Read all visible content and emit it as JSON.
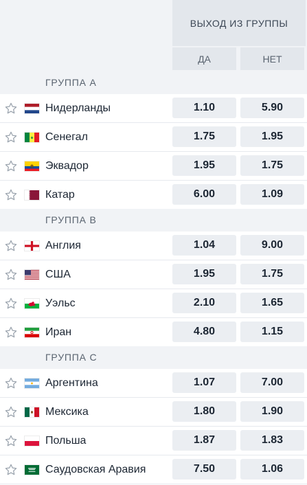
{
  "header": {
    "title": "ВЫХОД ИЗ ГРУППЫ",
    "col_yes": "ДА",
    "col_no": "НЕТ"
  },
  "groups": [
    {
      "name": "ГРУППА А",
      "teams": [
        {
          "name": "Нидерланды",
          "flag": "netherlands-flag-icon",
          "yes": "1.10",
          "no": "5.90"
        },
        {
          "name": "Сенегал",
          "flag": "senegal-flag-icon",
          "yes": "1.75",
          "no": "1.95"
        },
        {
          "name": "Эквадор",
          "flag": "ecuador-flag-icon",
          "yes": "1.95",
          "no": "1.75"
        },
        {
          "name": "Катар",
          "flag": "qatar-flag-icon",
          "yes": "6.00",
          "no": "1.09"
        }
      ]
    },
    {
      "name": "ГРУППА B",
      "teams": [
        {
          "name": "Англия",
          "flag": "england-flag-icon",
          "yes": "1.04",
          "no": "9.00"
        },
        {
          "name": "США",
          "flag": "usa-flag-icon",
          "yes": "1.95",
          "no": "1.75"
        },
        {
          "name": "Уэльс",
          "flag": "wales-flag-icon",
          "yes": "2.10",
          "no": "1.65"
        },
        {
          "name": "Иран",
          "flag": "iran-flag-icon",
          "yes": "4.80",
          "no": "1.15"
        }
      ]
    },
    {
      "name": "ГРУППА C",
      "teams": [
        {
          "name": "Аргентина",
          "flag": "argentina-flag-icon",
          "yes": "1.07",
          "no": "7.00"
        },
        {
          "name": "Мексика",
          "flag": "mexico-flag-icon",
          "yes": "1.80",
          "no": "1.90"
        },
        {
          "name": "Польша",
          "flag": "poland-flag-icon",
          "yes": "1.87",
          "no": "1.83"
        },
        {
          "name": "Саудовская Аравия",
          "flag": "saudi-arabia-flag-icon",
          "yes": "7.50",
          "no": "1.06"
        }
      ]
    }
  ],
  "colors": {
    "header_bg": "#f1f3f6",
    "cell_bg": "#ebeef2",
    "text": "#1c2633",
    "muted": "#59636f"
  }
}
